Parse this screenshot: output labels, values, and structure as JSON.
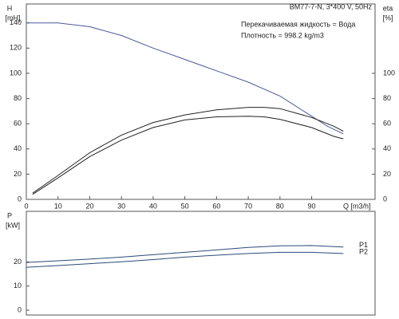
{
  "chart_data": [
    {
      "type": "line",
      "y_label": "H",
      "y_unit": "[mH]",
      "y2_label": "eta",
      "y2_unit": "[%]",
      "x_label": "Q [m3/h]",
      "annotations": [
        "BM77-7-N, 3*400 V, 50Hz",
        "Перекачиваемая жидкость = Вода",
        "Плотность = 998.2 kg/m3"
      ],
      "xlim": [
        0,
        110
      ],
      "xticks": [
        0,
        10,
        20,
        30,
        40,
        50,
        60,
        70,
        80,
        90
      ],
      "ylim": [
        0,
        155
      ],
      "yticks": [
        0,
        20,
        40,
        60,
        80,
        100,
        120,
        140
      ],
      "y2lim": [
        0,
        155
      ],
      "y2ticks": [
        0,
        20,
        40,
        60,
        80,
        100
      ],
      "series": [
        {
          "color": "#4a5a9a",
          "x": [
            0,
            10,
            20,
            30,
            40,
            50,
            60,
            70,
            80,
            90,
            95,
            100
          ],
          "values": [
            140,
            140,
            137,
            130,
            120,
            111,
            102,
            93,
            82,
            66,
            58,
            52
          ]
        },
        {
          "color": "#222222",
          "axis": "y2",
          "x": [
            2,
            10,
            20,
            30,
            40,
            50,
            60,
            70,
            75,
            80,
            90,
            97,
            100
          ],
          "values": [
            5,
            19,
            37,
            51,
            61,
            67,
            71,
            73,
            73,
            72,
            65,
            58,
            54
          ]
        },
        {
          "color": "#222222",
          "axis": "y2",
          "x": [
            2,
            10,
            20,
            30,
            40,
            50,
            60,
            70,
            75,
            80,
            90,
            97,
            100
          ],
          "values": [
            4,
            17,
            34,
            47,
            57,
            63,
            65.5,
            66,
            65.5,
            63.5,
            57,
            50,
            48
          ]
        }
      ]
    },
    {
      "type": "line",
      "y_label": "P",
      "y_unit": "[kW]",
      "xlim": [
        0,
        110
      ],
      "ylim": [
        -2,
        41
      ],
      "yticks": [
        0,
        10,
        20
      ],
      "series": [
        {
          "name": "P1",
          "color": "#2a4a7a",
          "x": [
            0,
            10,
            20,
            30,
            40,
            50,
            60,
            70,
            80,
            90,
            100
          ],
          "values": [
            19.8,
            20.5,
            21.2,
            22,
            23,
            24,
            25,
            26,
            26.7,
            26.8,
            26.2
          ]
        },
        {
          "name": "P2",
          "color": "#2a4a7a",
          "x": [
            0,
            10,
            20,
            30,
            40,
            50,
            60,
            70,
            80,
            90,
            100
          ],
          "values": [
            17.8,
            18.5,
            19.3,
            20.1,
            21,
            22,
            22.8,
            23.5,
            24,
            24,
            23.5
          ]
        }
      ]
    }
  ]
}
